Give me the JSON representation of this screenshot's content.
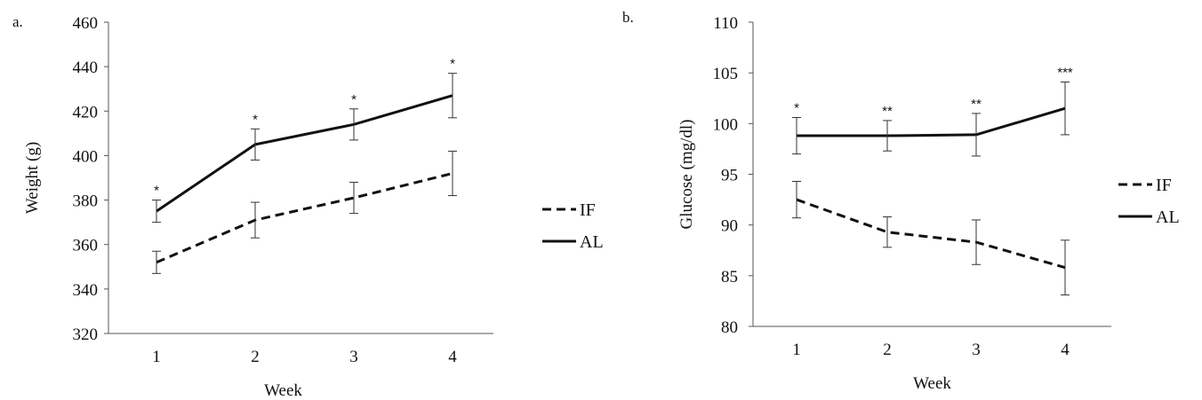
{
  "chart_data": [
    {
      "type": "line",
      "panel_label": "a.",
      "xlabel": "Week",
      "ylabel": "Weight (g)",
      "x": [
        1,
        2,
        3,
        4
      ],
      "categories": [
        "1",
        "2",
        "3",
        "4"
      ],
      "ylim": [
        320,
        460
      ],
      "yticks": [
        320,
        340,
        360,
        380,
        400,
        420,
        440,
        460
      ],
      "grid": false,
      "legend_position": "right",
      "series": [
        {
          "name": "IF",
          "style": "dashed",
          "values": [
            352,
            371,
            381,
            392
          ],
          "error": [
            5,
            8,
            7,
            10
          ]
        },
        {
          "name": "AL",
          "style": "solid",
          "values": [
            375,
            405,
            414,
            427
          ],
          "error": [
            5,
            7,
            7,
            10
          ]
        }
      ],
      "annotations": [
        "*",
        "*",
        "*",
        "*"
      ]
    },
    {
      "type": "line",
      "panel_label": "b.",
      "xlabel": "Week",
      "ylabel": "Glucose (mg/dl)",
      "x": [
        1,
        2,
        3,
        4
      ],
      "categories": [
        "1",
        "2",
        "3",
        "4"
      ],
      "ylim": [
        80,
        110
      ],
      "yticks": [
        80,
        85,
        90,
        95,
        100,
        105,
        110
      ],
      "grid": false,
      "legend_position": "right",
      "series": [
        {
          "name": "IF",
          "style": "dashed",
          "values": [
            92.5,
            89.3,
            88.3,
            85.8
          ],
          "error": [
            1.8,
            1.5,
            2.2,
            2.7
          ]
        },
        {
          "name": "AL",
          "style": "solid",
          "values": [
            98.8,
            98.8,
            98.9,
            101.5
          ],
          "error": [
            1.8,
            1.5,
            2.1,
            2.6
          ]
        }
      ],
      "annotations": [
        "*",
        "**",
        "**",
        "***"
      ]
    }
  ],
  "colors": {
    "line": "#111111"
  }
}
